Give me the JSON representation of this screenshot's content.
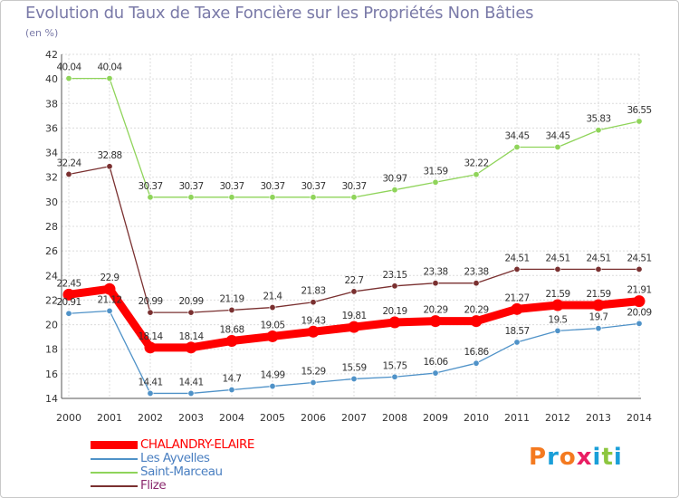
{
  "chart_data": {
    "type": "line",
    "title": "Evolution du Taux de Taxe Foncière sur les Propriétés Non Bâties",
    "ylabel": "(en %)",
    "xlabel": "",
    "x": [
      "2000",
      "2001",
      "2002",
      "2003",
      "2004",
      "2005",
      "2006",
      "2007",
      "2008",
      "2009",
      "2010",
      "2011",
      "2012",
      "2013",
      "2014"
    ],
    "ylim": [
      14,
      42
    ],
    "yticks": [
      14,
      16,
      18,
      20,
      22,
      24,
      26,
      28,
      30,
      32,
      34,
      36,
      38,
      40,
      42
    ],
    "grid": true,
    "legend_position": "bottom-left",
    "series": [
      {
        "name": "CHALANDRY-ELAIRE",
        "color": "#ff0000",
        "values": [
          22.45,
          22.9,
          18.14,
          18.14,
          18.68,
          19.05,
          19.43,
          19.81,
          20.19,
          20.29,
          20.29,
          21.27,
          21.59,
          21.59,
          21.91
        ],
        "labels": [
          "22.45",
          "22.9",
          "18.14",
          "18.14",
          "18.68",
          "19.05",
          "19.43",
          "19.81",
          "20.19",
          "20.29",
          "20.29",
          "21.27",
          "21.59",
          "21.59",
          "21.91"
        ]
      },
      {
        "name": "Les Ayvelles",
        "color": "#4f92c8",
        "values": [
          20.91,
          21.12,
          14.41,
          14.41,
          14.7,
          14.99,
          15.29,
          15.59,
          15.75,
          16.06,
          16.86,
          18.57,
          19.5,
          19.7,
          20.09
        ],
        "labels": [
          "20.91",
          "21.12",
          "14.41",
          "14.41",
          "14.7",
          "14.99",
          "15.29",
          "15.59",
          "15.75",
          "16.06",
          "16.86",
          "18.57",
          "19.5",
          "19.7",
          "20.09"
        ]
      },
      {
        "name": "Saint-Marceau",
        "color": "#8fd45a",
        "values": [
          40.04,
          40.04,
          30.37,
          30.37,
          30.37,
          30.37,
          30.37,
          30.37,
          30.97,
          31.59,
          32.22,
          34.45,
          34.45,
          35.83,
          36.55
        ],
        "labels": [
          "40.04",
          "40.04",
          "30.37",
          "30.37",
          "30.37",
          "30.37",
          "30.37",
          "30.37",
          "30.97",
          "31.59",
          "32.22",
          "34.45",
          "34.45",
          "35.83",
          "36.55"
        ]
      },
      {
        "name": "Flize",
        "color": "#7a3030",
        "values": [
          32.24,
          32.88,
          20.99,
          20.99,
          21.19,
          21.4,
          21.83,
          22.7,
          23.15,
          23.38,
          23.38,
          24.51,
          24.51,
          24.51,
          24.51
        ],
        "labels": [
          "32.24",
          "32.88",
          "20.99",
          "20.99",
          "21.19",
          "21.4",
          "21.83",
          "22.7",
          "23.15",
          "23.38",
          "23.38",
          "24.51",
          "24.51",
          "24.51",
          "24.51"
        ]
      }
    ]
  },
  "logo": {
    "text": "Proxiti",
    "colors": [
      "#f47a20",
      "#1a9fd8",
      "#f47a20",
      "#e91e63",
      "#1a9fd8",
      "#8dc63f",
      "#1a9fd8"
    ]
  }
}
